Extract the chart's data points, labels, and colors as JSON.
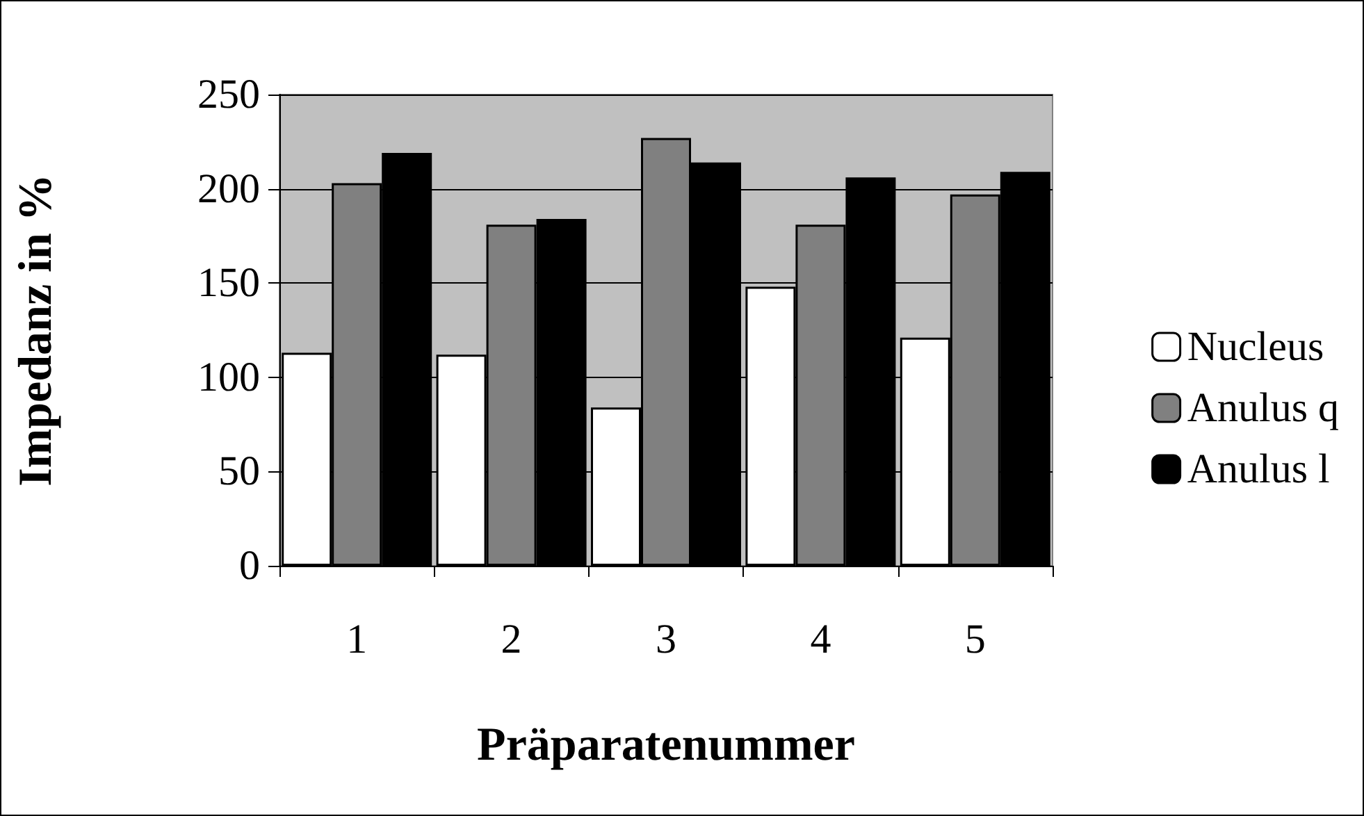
{
  "chart_data": {
    "type": "bar",
    "xlabel": "Präparatenummer",
    "ylabel": "Impedanz in %",
    "categories": [
      "1",
      "2",
      "3",
      "4",
      "5"
    ],
    "series": [
      {
        "name": "Nucleus",
        "color": "#ffffff",
        "values": [
          113,
          112,
          84,
          148,
          121
        ]
      },
      {
        "name": "Anulus q",
        "color": "#808080",
        "values": [
          203,
          181,
          227,
          181,
          197
        ]
      },
      {
        "name": "Anulus l",
        "color": "#000000",
        "values": [
          219,
          184,
          214,
          206,
          209
        ]
      }
    ],
    "ylim": [
      0,
      250
    ],
    "yticks": [
      0,
      50,
      100,
      150,
      200,
      250
    ],
    "grid": "y",
    "legend": "right"
  }
}
